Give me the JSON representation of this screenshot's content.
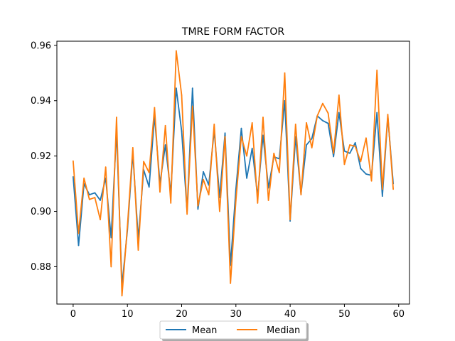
{
  "chart_data": {
    "type": "line",
    "title": "TMRE FORM FACTOR",
    "xlabel": "",
    "ylabel": "",
    "xlim": [
      -3,
      62
    ],
    "ylim": [
      0.8665,
      0.9615
    ],
    "xticks": [
      0,
      10,
      20,
      30,
      40,
      50,
      60
    ],
    "xtick_labels": [
      "0",
      "10",
      "20",
      "30",
      "40",
      "50",
      "60"
    ],
    "yticks": [
      0.88,
      0.9,
      0.92,
      0.94,
      0.96
    ],
    "ytick_labels": [
      "0.88",
      "0.90",
      "0.92",
      "0.94",
      "0.96"
    ],
    "grid": false,
    "legend_position": "below",
    "x": [
      0,
      1,
      2,
      3,
      4,
      5,
      6,
      7,
      8,
      9,
      10,
      11,
      12,
      13,
      14,
      15,
      16,
      17,
      18,
      19,
      20,
      21,
      22,
      23,
      24,
      25,
      26,
      27,
      28,
      29,
      30,
      31,
      32,
      33,
      34,
      35,
      36,
      37,
      38,
      39,
      40,
      41,
      42,
      43,
      44,
      45,
      46,
      47,
      48,
      49,
      50,
      51,
      52,
      53,
      54,
      55,
      56,
      57,
      58,
      59
    ],
    "series": [
      {
        "name": "Mean",
        "color": "#1f77b4",
        "values": [
          0.9125,
          0.8877,
          0.91,
          0.906,
          0.9067,
          0.904,
          0.912,
          0.8905,
          0.929,
          0.873,
          0.8932,
          0.921,
          0.89,
          0.915,
          0.9088,
          0.9345,
          0.91,
          0.924,
          0.9065,
          0.9445,
          0.929,
          0.9,
          0.9445,
          0.9008,
          0.9143,
          0.9095,
          0.9293,
          0.905,
          0.9283,
          0.8805,
          0.908,
          0.93,
          0.912,
          0.9228,
          0.9055,
          0.9275,
          0.9085,
          0.9197,
          0.919,
          0.94,
          0.8965,
          0.927,
          0.9063,
          0.924,
          0.9263,
          0.9345,
          0.9328,
          0.9318,
          0.9198,
          0.9357,
          0.9218,
          0.921,
          0.9248,
          0.9155,
          0.9135,
          0.913,
          0.9357,
          0.9055,
          0.9343,
          0.91
        ]
      },
      {
        "name": "Median",
        "color": "#ff7f0e",
        "values": [
          0.9182,
          0.892,
          0.912,
          0.9043,
          0.905,
          0.897,
          0.916,
          0.88,
          0.934,
          0.8695,
          0.8945,
          0.923,
          0.886,
          0.918,
          0.914,
          0.9375,
          0.907,
          0.931,
          0.903,
          0.958,
          0.942,
          0.899,
          0.938,
          0.902,
          0.9115,
          0.906,
          0.9315,
          0.9,
          0.927,
          0.874,
          0.904,
          0.927,
          0.92,
          0.932,
          0.903,
          0.934,
          0.904,
          0.921,
          0.914,
          0.95,
          0.897,
          0.9315,
          0.906,
          0.932,
          0.923,
          0.9345,
          0.939,
          0.9355,
          0.921,
          0.942,
          0.917,
          0.924,
          0.9235,
          0.918,
          0.9265,
          0.911,
          0.951,
          0.908,
          0.935,
          0.908
        ]
      }
    ]
  }
}
